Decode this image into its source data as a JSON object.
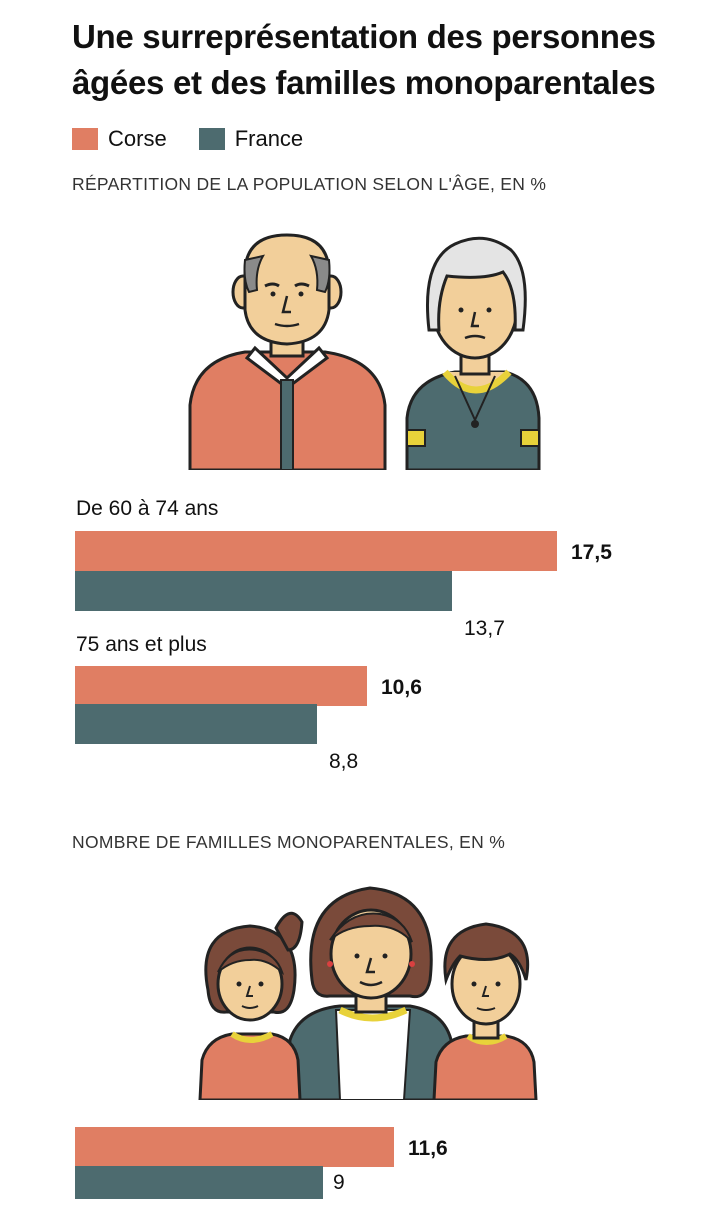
{
  "title": "Une surreprésentation des personnes âgées et des familles monoparentales",
  "legend": [
    {
      "label": "Corse",
      "color": "#e07e63"
    },
    {
      "label": "France",
      "color": "#4d6b6f"
    }
  ],
  "colors": {
    "corse": "#e07e63",
    "france": "#4d6b6f",
    "yellow": "#e8d23a",
    "skin": "#f2cf9a"
  },
  "chart_data": [
    {
      "type": "bar",
      "orientation": "horizontal",
      "subtitle": "RÉPARTITION DE LA POPULATION SELON L'ÂGE, EN %",
      "categories": [
        "De 60 à 74 ans",
        "75 ans et plus"
      ],
      "series": [
        {
          "name": "Corse",
          "values": [
            17.5,
            10.6
          ],
          "labels": [
            "17,5",
            "10,6"
          ]
        },
        {
          "name": "France",
          "values": [
            13.7,
            8.8
          ],
          "labels": [
            "13,7",
            "8,8"
          ]
        }
      ],
      "xlim": [
        0,
        17.5
      ],
      "grid": false,
      "legend": "top-left"
    },
    {
      "type": "bar",
      "orientation": "horizontal",
      "subtitle": "NOMBRE DE FAMILLES MONOPARENTALES, EN %",
      "categories": [
        ""
      ],
      "series": [
        {
          "name": "Corse",
          "values": [
            11.6
          ],
          "labels": [
            "11,6"
          ]
        },
        {
          "name": "France",
          "values": [
            9
          ],
          "labels": [
            "9"
          ]
        }
      ],
      "xlim": [
        0,
        17.5
      ],
      "grid": false,
      "legend": "top-left"
    }
  ],
  "illustrations": [
    {
      "icon": "elderly-couple-icon"
    },
    {
      "icon": "single-parent-family-icon"
    }
  ]
}
